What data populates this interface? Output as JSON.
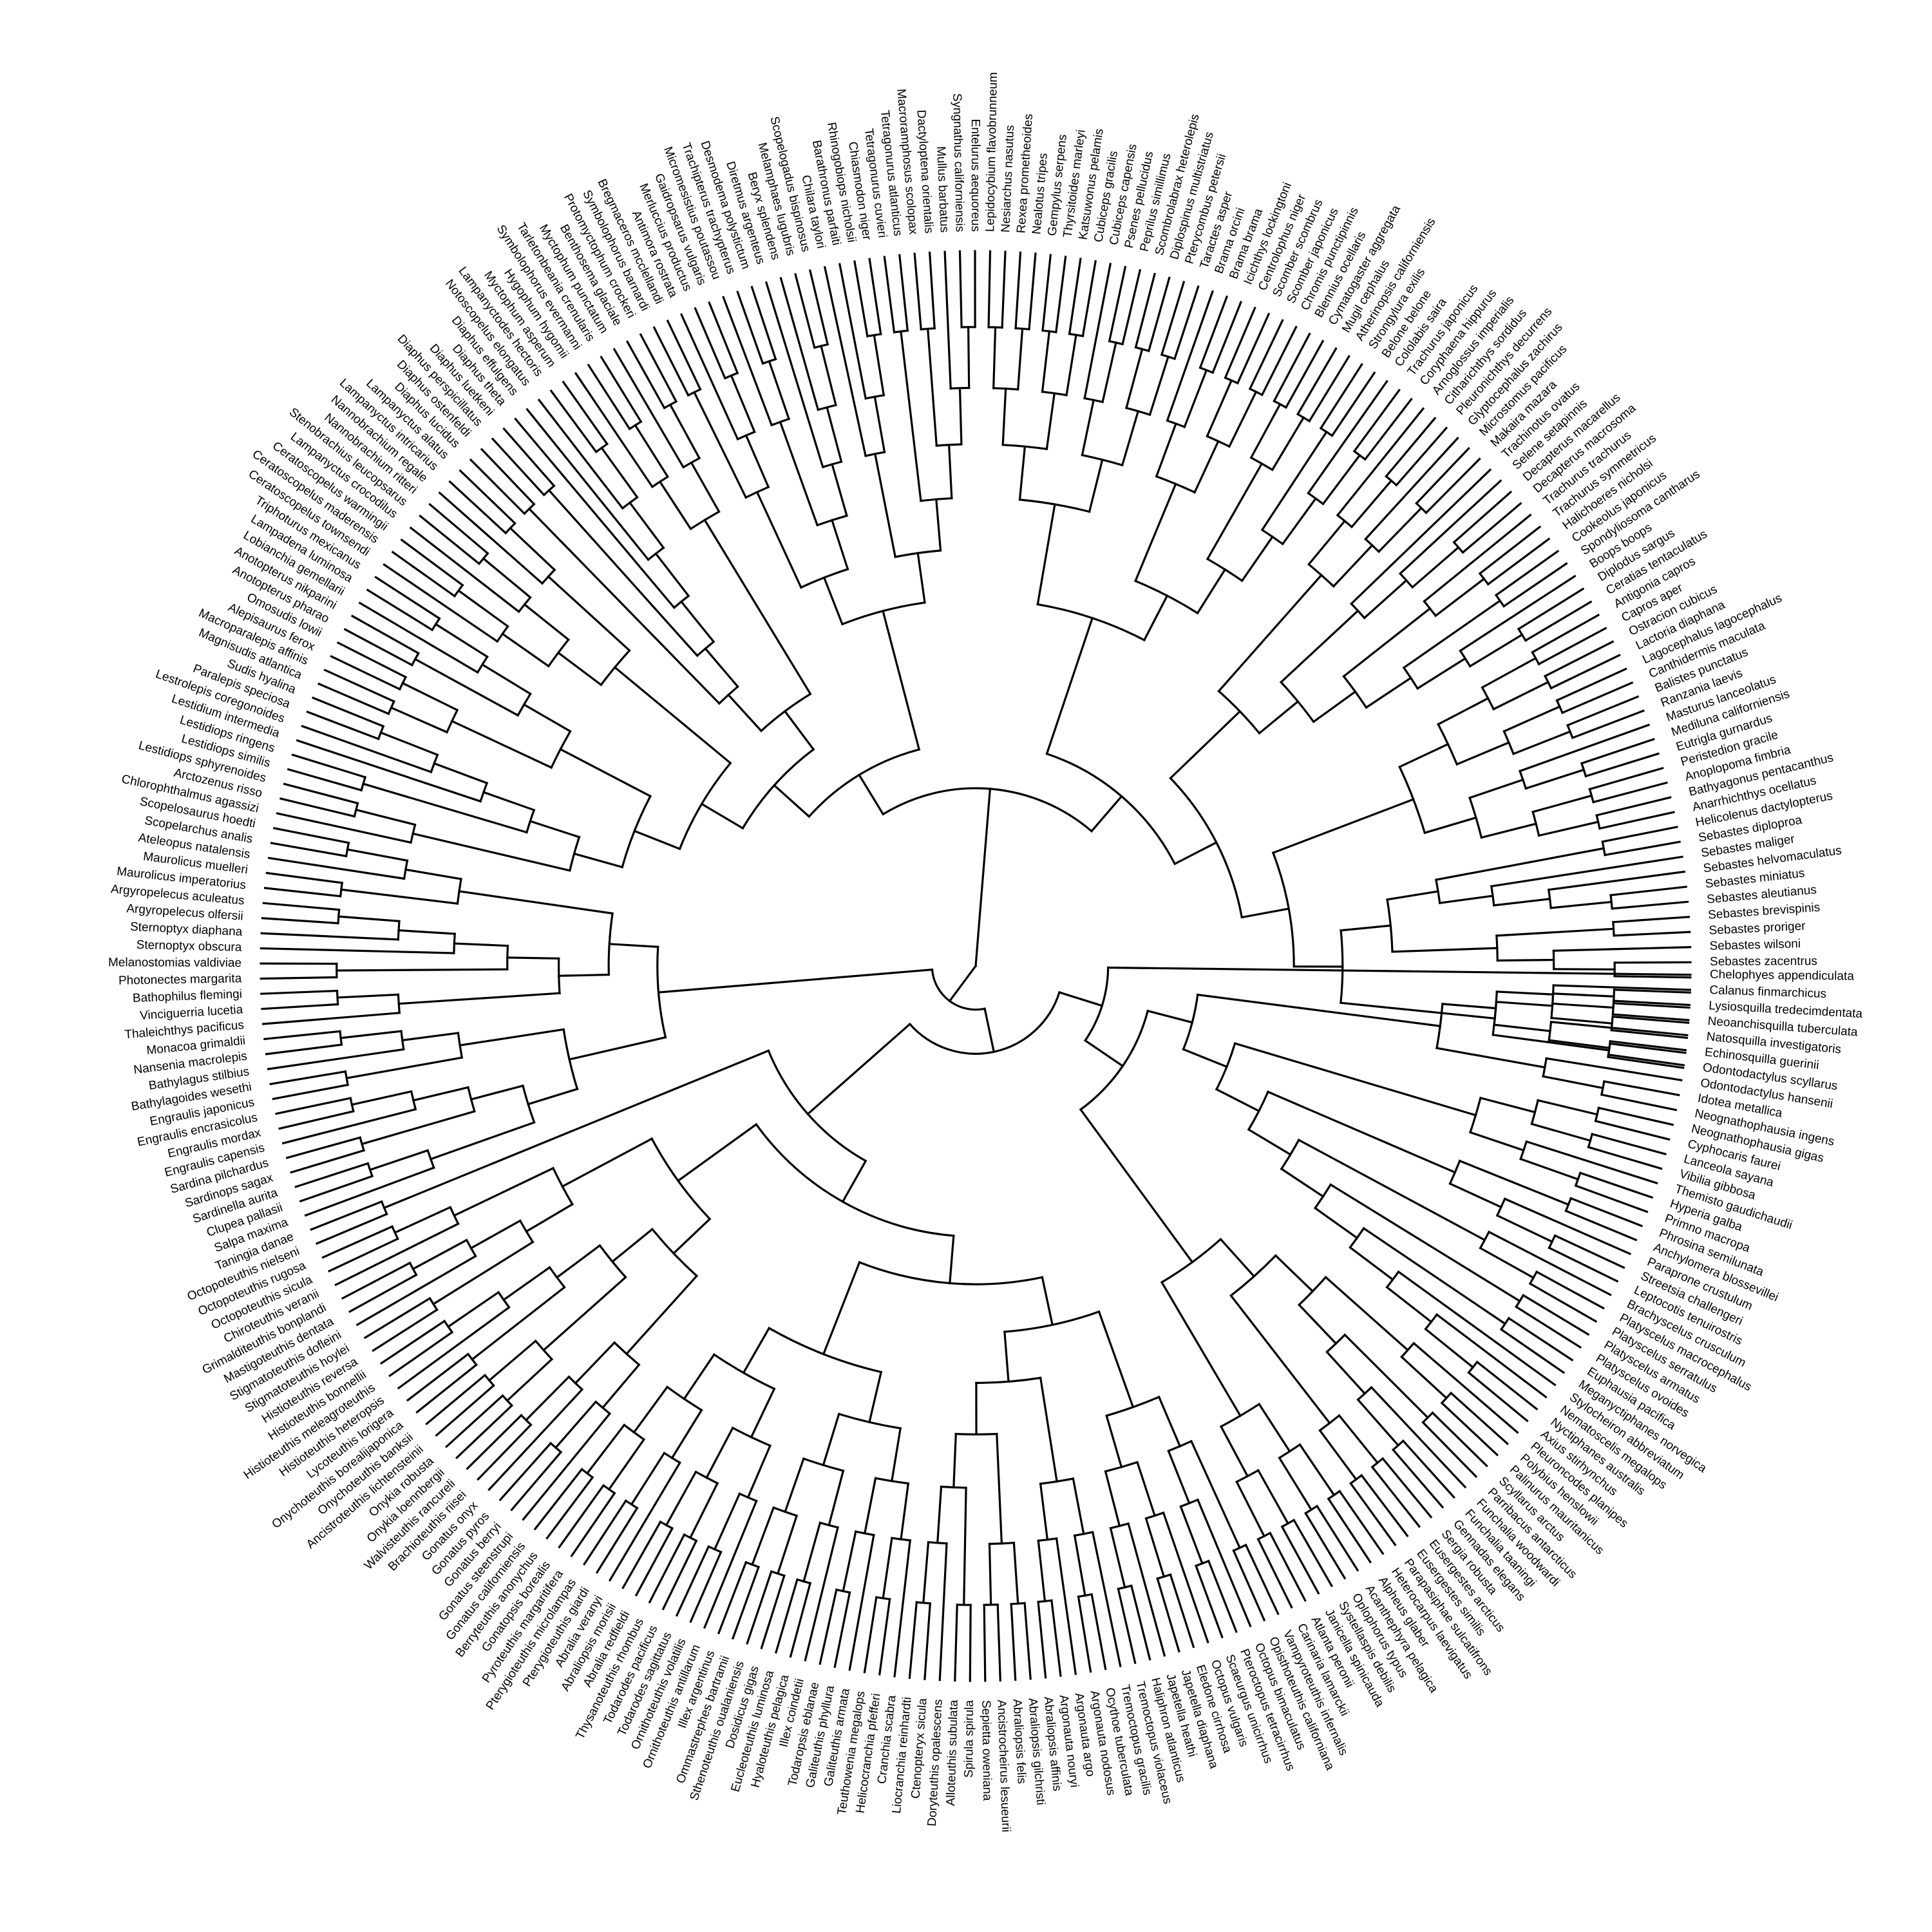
{
  "diagram": {
    "type": "circular-phylogenetic-tree",
    "line_color": "#000000",
    "background": "#ffffff",
    "tips": [
      "Chelophyes appendiculata",
      "Calanus finmarchicus",
      "Lysiosquilla tredecimdentata",
      "Neoanchisquilla tuberculata",
      "Natosquilla investigatoris",
      "Echinosquilla guerinii",
      "Odontodactylus scyllarus",
      "Odontodactylus hansenii",
      "Idotea metallica",
      "Neognathophausia ingens",
      "Neognathophausia gigas",
      "Cyphocaris faurei",
      "Lanceola sayana",
      "Vibilia gibbosa",
      "Themisto gaudichaudii",
      "Hyperia galba",
      "Primno macropa",
      "Phrosina semilunata",
      "Anchylomera blossevillei",
      "Paraprone crustulum",
      "Streetsia challengeri",
      "Leptocotis tenuirostris",
      "Brachyscelus crusculum",
      "Platyscelus macrocephalus",
      "Platyscelus serratulus",
      "Platyscelus armatus",
      "Platyscelus ovoides",
      "Euphausia pacifica",
      "Meganyctiphanes norvegica",
      "Stylocheiron abbreviatum",
      "Nematoscelis megalops",
      "Nyctiphanes australis",
      "Axius stirhynchus",
      "Pleuroncodes planipes",
      "Polybius henslowii",
      "Palinurus mauritanicus",
      "Scyllarus arctus",
      "Parribacus antarcticus",
      "Funchalia woodwardi",
      "Funchalia taaningi",
      "Gennadas elegans",
      "Sergia robusta",
      "Eusergestes arcticus",
      "Eusergestes similis",
      "Parapasiphae sulcatifrons",
      "Heterocarpus laevigatus",
      "Alpheus glaber",
      "Acanthephyra pelagica",
      "Oplophorus typus",
      "Systellaspis debilis",
      "Janicella spinicauda",
      "Atlanta peronii",
      "Carinaria lamarckii",
      "Vampyroteuthis infernalis",
      "Opisthoteuthis californiana",
      "Octopus bimaculatus",
      "Pteroctopus tetracirrhus",
      "Scaeurgus unicirrhus",
      "Octopus vulgaris",
      "Eledone cirrhosa",
      "Japetella diaphana",
      "Japetella heathi",
      "Haliphron atlanticus",
      "Tremoctopus violaceus",
      "Tremoctopus gracilis",
      "Ocythoe tuberculata",
      "Argonauta nodosus",
      "Argonauta argo",
      "Argonauta nouryi",
      "Abraliopsis affinis",
      "Abraliopsis gilchristi",
      "Abraliopsis felis",
      "Ancistrocheirus lesueurii",
      "Sepietta oweniana",
      "Spirula spirula",
      "Alloteuthis subulata",
      "Doryteuthis opalescens",
      "Ctenopteryx sicula",
      "Liocranchia reinhardti",
      "Cranchia scabra",
      "Helicocranchia pfefferi",
      "Teuthowenia megalops",
      "Galiteuthis armata",
      "Galiteuthis phyllura",
      "Todaropsis eblanae",
      "Illex coindetii",
      "Hyaloteuthis pelagica",
      "Eucleoteuthis luminosa",
      "Dosidicus gigas",
      "Sthenoteuthis oualaniensis",
      "Ommastrephes bartramii",
      "Illex argentinus",
      "Ornithoteuthis antillarum",
      "Ornithoteuthis volatilis",
      "Todarodes sagittatus",
      "Todarodes pacificus",
      "Thysanoteuthis rhombus",
      "Abralia redfieldi",
      "Abraliopsis morisii",
      "Abralia veranyi",
      "Pterygioteuthis giardi",
      "Pterygioteuthis microlampas",
      "Pyroteuthis margaritifera",
      "Gonatopsis borealis",
      "Berryteuthis anonychus",
      "Gonatus californiensis",
      "Gonatus steenstrupi",
      "Gonatus berryi",
      "Gonatus pyros",
      "Gonatus onyx",
      "Brachioteuthis riisei",
      "Walvisteuthis rancureli",
      "Onykia loennbergii",
      "Onykia robusta",
      "Ancistroteuthis lichtensteinii",
      "Onychoteuthis banksii",
      "Onychoteuthis borealijaponica",
      "Lycoteuthis lorigera",
      "Histioteuthis heteropsis",
      "Histioteuthis meleagroteuthis",
      "Histioteuthis bonnellii",
      "Histioteuthis reversa",
      "Stigmatoteuthis hoylei",
      "Stigmatoteuthis dofleini",
      "Mastigoteuthis dentata",
      "Grimalditeuthis bonplandi",
      "Chiroteuthis veranii",
      "Octopoteuthis sicula",
      "Octopoteuthis rugosa",
      "Octopoteuthis nielseni",
      "Taningia danae",
      "Salpa maxima",
      "Clupea pallasii",
      "Sardinella aurita",
      "Sardinops sagax",
      "Sardina pilchardus",
      "Engraulis capensis",
      "Engraulis mordax",
      "Engraulis encrasicolus",
      "Engraulis japonicus",
      "Bathylagoides wesethi",
      "Bathylagus stilbius",
      "Nansenia macrolepis",
      "Monacoa grimaldii",
      "Thaleichthys pacificus",
      "Vinciguerria lucetia",
      "Bathophilus flemingi",
      "Photonectes margarita",
      "Melanostomias valdiviae",
      "Sternoptyx obscura",
      "Sternoptyx diaphana",
      "Argyropelecus olfersii",
      "Argyropelecus aculeatus",
      "Maurolicus imperatorius",
      "Maurolicus muelleri",
      "Ateleopus natalensis",
      "Scopelarchus analis",
      "Scopelosaurus hoedti",
      "Chlorophthalmus agassizi",
      "Arctozenus risso",
      "Lestidiops sphyrenoides",
      "Lestidiops similis",
      "Lestidiops ringens",
      "Lestidium intermedia",
      "Lestrolepis coregonoides",
      "Paralepis speciosa",
      "Sudis hyalina",
      "Magnisudis atlantica",
      "Macroparalepis affinis",
      "Alepisaurus ferox",
      "Omosudis lowii",
      "Anotopterus pharao",
      "Anotopterus nikparini",
      "Lobianchia gemellarii",
      "Lampadena luminosa",
      "Triphoturus mexicanus",
      "Ceratoscopelus townsendi",
      "Ceratoscopelus maderensis",
      "Ceratoscopelus warmingii",
      "Lampanyctus crocodilus",
      "Stenobrachius leucopsarus",
      "Nannobrachium ritteri",
      "Nannobrachium regale",
      "Lampanyctus intricarius",
      "Lampanyctus alatus",
      "Diaphus lucidus",
      "Diaphus ostenfeldi",
      "Diaphus perspicillatus",
      "Diaphus luetkeni",
      "Diaphus theta",
      "Diaphus effulgens",
      "Notoscopelus elongatus",
      "Lampanyctodes hectoris",
      "Myctophum asperum",
      "Hygophum hygomii",
      "Symbolophorus evermanni",
      "Tarletonbeania crenularis",
      "Myctophum punctatum",
      "Benthosema glaciale",
      "Protomyctophum crockeri",
      "Symbolophorus barnardi",
      "Bregmaceros mcclellandi",
      "Antimora rostrata",
      "Merluccius productus",
      "Gaidropsarus vulgaris",
      "Micromesistius poutassou",
      "Trachipterus trachypterus",
      "Desmodema polystictum",
      "Diretmus argenteus",
      "Beryx splendens",
      "Melamphaes lugubris",
      "Scopelogadus bispinosus",
      "Chilara taylori",
      "Barathronus parfaiti",
      "Rhinogobiops nicholsii",
      "Chiasmodon niger",
      "Tetragonurus cuvieri",
      "Tetragonurus atlanticus",
      "Macroramphosus scolopax",
      "Dactyloptena orientalis",
      "Mullus barbatus",
      "Syngnathus californiensis",
      "Entelurus aequoreus",
      "Lepidocybium flavobrunneum",
      "Nesiarchus nasutus",
      "Rexea prometheoides",
      "Nealotus tripes",
      "Gempylus serpens",
      "Thyrsitoides marleyi",
      "Katsuwonus pelamis",
      "Cubiceps gracilis",
      "Cubiceps capensis",
      "Psenes pellucidus",
      "Peprilus simillimus",
      "Scombrolabrax heterolepis",
      "Diplospinus multistriatus",
      "Pterycombus petersii",
      "Taractes asper",
      "Brama orcini",
      "Brama brama",
      "Icichthys lockingtoni",
      "Centrolophus niger",
      "Scomber scombrus",
      "Scomber japonicus",
      "Chromis punctipinnis",
      "Blennius ocellaris",
      "Cymatogaster aggregata",
      "Mugil cephalus",
      "Atherinopsis californiensis",
      "Strongylura exilis",
      "Belone belone",
      "Cololabis saira",
      "Trachurus japonicus",
      "Coryphaena hippurus",
      "Arnoglossus imperialis",
      "Citharichthys sordidus",
      "Pleuronichthys decurrens",
      "Glyptocephalus zachirus",
      "Microstomus pacificus",
      "Makaira mazara",
      "Trachinotus ovatus",
      "Selene setapinnis",
      "Decapterus macarellus",
      "Decapterus macrosoma",
      "Trachurus trachurus",
      "Trachurus symmetricus",
      "Halichoeres nicholsi",
      "Cookeolus japonicus",
      "Spondyliosoma cantharus",
      "Boops boops",
      "Diplodus sargus",
      "Ceratias tentaculatus",
      "Antigonia capros",
      "Capros aper",
      "Ostracion cubicus",
      "Lactoria diaphana",
      "Lagocephalus lagocephalus",
      "Canthidermis maculata",
      "Balistes punctatus",
      "Ranzania laevis",
      "Masturus lanceolatus",
      "Mediluna californiensis",
      "Eutrigla gurnardus",
      "Peristedion gracile",
      "Anoplopoma fimbria",
      "Bathyagonus pentacanthus",
      "Anarrhichthys ocellatus",
      "Helicolenus dactylopterus",
      "Sebastes diploproa",
      "Sebastes maliger",
      "Sebastes helvomaculatus",
      "Sebastes miniatus",
      "Sebastes aleutianus",
      "Sebastes brevispinis",
      "Sebastes proriger",
      "Sebastes wilsoni",
      "Sebastes zacentrus"
    ]
  }
}
